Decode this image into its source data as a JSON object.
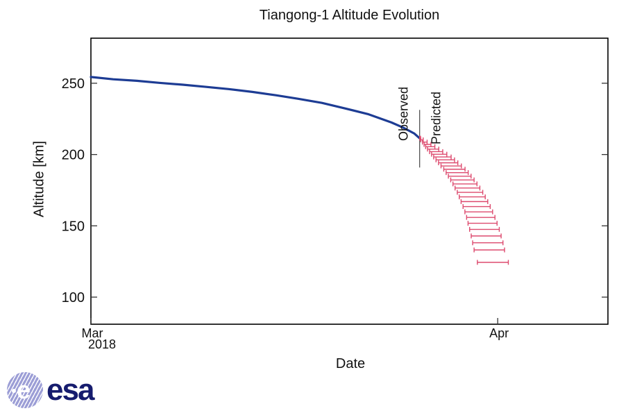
{
  "title": "Tiangong-1 Altitude Evolution",
  "xlabel": "Date",
  "ylabel": "Altitude [km]",
  "labels": {
    "observed": "Observed",
    "predicted": "Predicted"
  },
  "esa": {
    "wordmark": "esa",
    "globe_letter": "e"
  },
  "colors": {
    "observed_line": "#1d3c94",
    "predicted_bars": "#dd4a6e",
    "separator_line": "#555555",
    "frame": "#000000",
    "esa_globe": "#9c9ed6",
    "esa_text": "#161c6e"
  },
  "chart_data": {
    "type": "line",
    "title": "Tiangong-1 Altitude Evolution",
    "xlabel": "Date",
    "ylabel": "Altitude [km]",
    "x_unit": "days since 2018-03-01",
    "xlim": [
      0,
      39.4
    ],
    "ylim": [
      81,
      281.6
    ],
    "grid": false,
    "legend_position": "none",
    "x_ticks": [
      {
        "t": 0,
        "label": "Mar",
        "sublabel": "2018"
      },
      {
        "t": 31,
        "label": "Apr",
        "sublabel": ""
      }
    ],
    "y_ticks": [
      {
        "alt": 250,
        "label": "250"
      },
      {
        "alt": 200,
        "label": "200"
      },
      {
        "alt": 150,
        "label": "150"
      },
      {
        "alt": 100,
        "label": "100"
      }
    ],
    "series": [
      {
        "name": "Observed",
        "style": "solid line",
        "color": "#1d3c94",
        "points": [
          [
            0,
            254.4
          ],
          [
            1.7,
            252.8
          ],
          [
            3.5,
            251.7
          ],
          [
            5.2,
            250.3
          ],
          [
            7.0,
            249.0
          ],
          [
            8.8,
            247.4
          ],
          [
            10.5,
            245.9
          ],
          [
            12.3,
            243.9
          ],
          [
            14.1,
            241.6
          ],
          [
            15.8,
            239.1
          ],
          [
            17.6,
            236.2
          ],
          [
            19.4,
            232.3
          ],
          [
            21.1,
            228.4
          ],
          [
            22.9,
            222.5
          ],
          [
            23.8,
            218.9
          ],
          [
            24.65,
            214.7
          ],
          [
            25.07,
            211.3
          ]
        ]
      },
      {
        "name": "Predicted",
        "style": "horizontal error bars [altitude_km, t_early, t_late]",
        "color": "#dd4a6e",
        "bars": [
          [
            211.4,
            25.06,
            25.12
          ],
          [
            210.3,
            25.14,
            25.32
          ],
          [
            208.7,
            25.27,
            25.62
          ],
          [
            207.1,
            25.39,
            25.91
          ],
          [
            205.5,
            25.51,
            26.21
          ],
          [
            203.8,
            25.65,
            26.51
          ],
          [
            202.0,
            25.81,
            26.81
          ],
          [
            200.2,
            25.96,
            27.12
          ],
          [
            198.3,
            26.12,
            27.45
          ],
          [
            196.3,
            26.3,
            27.71
          ],
          [
            194.2,
            26.49,
            27.96
          ],
          [
            192.0,
            26.68,
            28.23
          ],
          [
            189.7,
            26.89,
            28.51
          ],
          [
            187.3,
            27.07,
            28.75
          ],
          [
            184.8,
            27.24,
            28.97
          ],
          [
            182.2,
            27.42,
            29.2
          ],
          [
            179.4,
            27.59,
            29.42
          ],
          [
            176.5,
            27.75,
            29.64
          ],
          [
            173.5,
            27.92,
            29.86
          ],
          [
            170.3,
            28.07,
            30.05
          ],
          [
            167.0,
            28.21,
            30.24
          ],
          [
            163.5,
            28.36,
            30.43
          ],
          [
            159.8,
            28.5,
            30.61
          ],
          [
            155.9,
            28.63,
            30.79
          ],
          [
            151.8,
            28.74,
            30.95
          ],
          [
            147.5,
            28.86,
            31.12
          ],
          [
            142.9,
            28.98,
            31.26
          ],
          [
            138.1,
            29.09,
            31.4
          ],
          [
            133.1,
            29.2,
            31.52
          ]
        ],
        "final_window_bar": [
          124.4,
          29.45,
          31.81
        ]
      }
    ],
    "separator": {
      "t": 25.05,
      "alt_top": 231.3,
      "alt_bottom": 190.9
    },
    "annotations": [
      {
        "text": "Observed",
        "side": "left of separator",
        "rotation": -90
      },
      {
        "text": "Predicted",
        "side": "right of separator",
        "rotation": -90
      }
    ]
  }
}
